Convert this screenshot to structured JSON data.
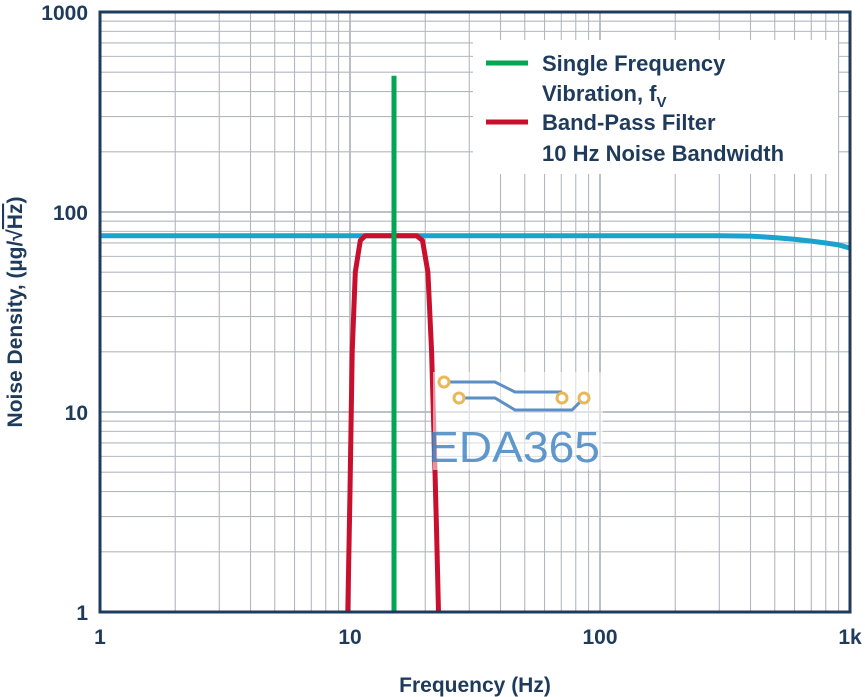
{
  "chart_data": {
    "type": "line",
    "xscale": "log",
    "yscale": "log",
    "xlim": [
      1,
      1000
    ],
    "ylim": [
      1,
      1000
    ],
    "xlabel": "Frequency (Hz)",
    "ylabel_prefix": "Noise Density, (µg/",
    "ylabel_radical": "√",
    "ylabel_hz": "Hz",
    "ylabel_suffix": ")",
    "x_ticks": [
      {
        "value": 1,
        "label": "1"
      },
      {
        "value": 10,
        "label": "10"
      },
      {
        "value": 100,
        "label": "100"
      },
      {
        "value": 1000,
        "label": "1k"
      }
    ],
    "y_ticks": [
      {
        "value": 1,
        "label": "1"
      },
      {
        "value": 10,
        "label": "10"
      },
      {
        "value": 100,
        "label": "100"
      },
      {
        "value": 1000,
        "label": "1000"
      }
    ],
    "grid": true,
    "legend_position": "top-right",
    "series": [
      {
        "name": "Single Frequency Vibration, f",
        "name_line1": "Single Frequency",
        "name_line2": "Vibration, f",
        "name_sub": "V",
        "color": "#00a651",
        "x": [
          15,
          15
        ],
        "y": [
          1,
          480
        ]
      },
      {
        "name": "Band-Pass Filter 10 Hz Noise Bandwidth",
        "name_line1": "Band-Pass Filter",
        "name_line2": "10 Hz Noise Bandwidth",
        "color": "#c8102e",
        "x": [
          9.8,
          10.0,
          10.2,
          10.5,
          11.0,
          11.5,
          18.5,
          19.5,
          20.5,
          21.2,
          21.8,
          22.2,
          22.6
        ],
        "y": [
          1,
          4,
          20,
          50,
          72,
          76,
          76,
          72,
          50,
          20,
          6,
          2.5,
          1
        ]
      },
      {
        "name": "Noise Density",
        "color": "#1aa3cc",
        "x": [
          1,
          10,
          100,
          300,
          400,
          500,
          600,
          700,
          800,
          900,
          1000
        ],
        "y": [
          76,
          76,
          76,
          76,
          75.8,
          74.5,
          73,
          71.5,
          70,
          68.5,
          66
        ]
      }
    ]
  },
  "watermark": {
    "text": "EDA365",
    "dot_color": "#e8b85a",
    "trace_color": "#5b8fc5"
  }
}
